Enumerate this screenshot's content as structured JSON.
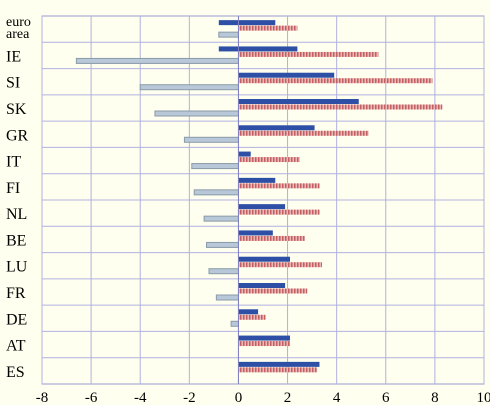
{
  "chart_data": {
    "type": "bar",
    "orientation": "horizontal",
    "categories": [
      "euro area",
      "IE",
      "SI",
      "SK",
      "GR",
      "IT",
      "FI",
      "NL",
      "BE",
      "LU",
      "FR",
      "DE",
      "AT",
      "ES"
    ],
    "series": [
      {
        "values": [
          1.5,
          2.4,
          3.9,
          4.9,
          3.1,
          0.5,
          1.5,
          1.9,
          1.4,
          2.1,
          1.9,
          0.8,
          2.1,
          3.3
        ],
        "color": "#2d4fa6",
        "pattern": "solid"
      },
      {
        "values": [
          2.4,
          5.7,
          7.9,
          8.3,
          5.3,
          2.5,
          3.3,
          3.3,
          2.7,
          3.4,
          2.8,
          1.1,
          2.1,
          3.2
        ],
        "color": "#d9a0a0",
        "pattern": "hatched"
      },
      {
        "values": [
          -0.8,
          -6.6,
          -4.0,
          -3.4,
          -2.2,
          -1.9,
          -1.8,
          -1.4,
          -1.3,
          -1.2,
          -0.9,
          -0.3,
          0,
          0
        ],
        "color": "#b8c8d8",
        "pattern": "solid"
      },
      {
        "values": [
          -0.8,
          -0.8,
          0,
          0,
          0,
          0,
          0,
          0,
          0,
          0,
          0,
          0,
          0,
          0
        ],
        "color": "#2d4fa6",
        "pattern": "solid"
      }
    ],
    "xlim": [
      -8,
      10
    ],
    "xticks": [
      "-8",
      "-6",
      "-4",
      "-2",
      "0",
      "2",
      "4",
      "6",
      "8",
      "10"
    ],
    "grid": true,
    "legend": "none"
  }
}
